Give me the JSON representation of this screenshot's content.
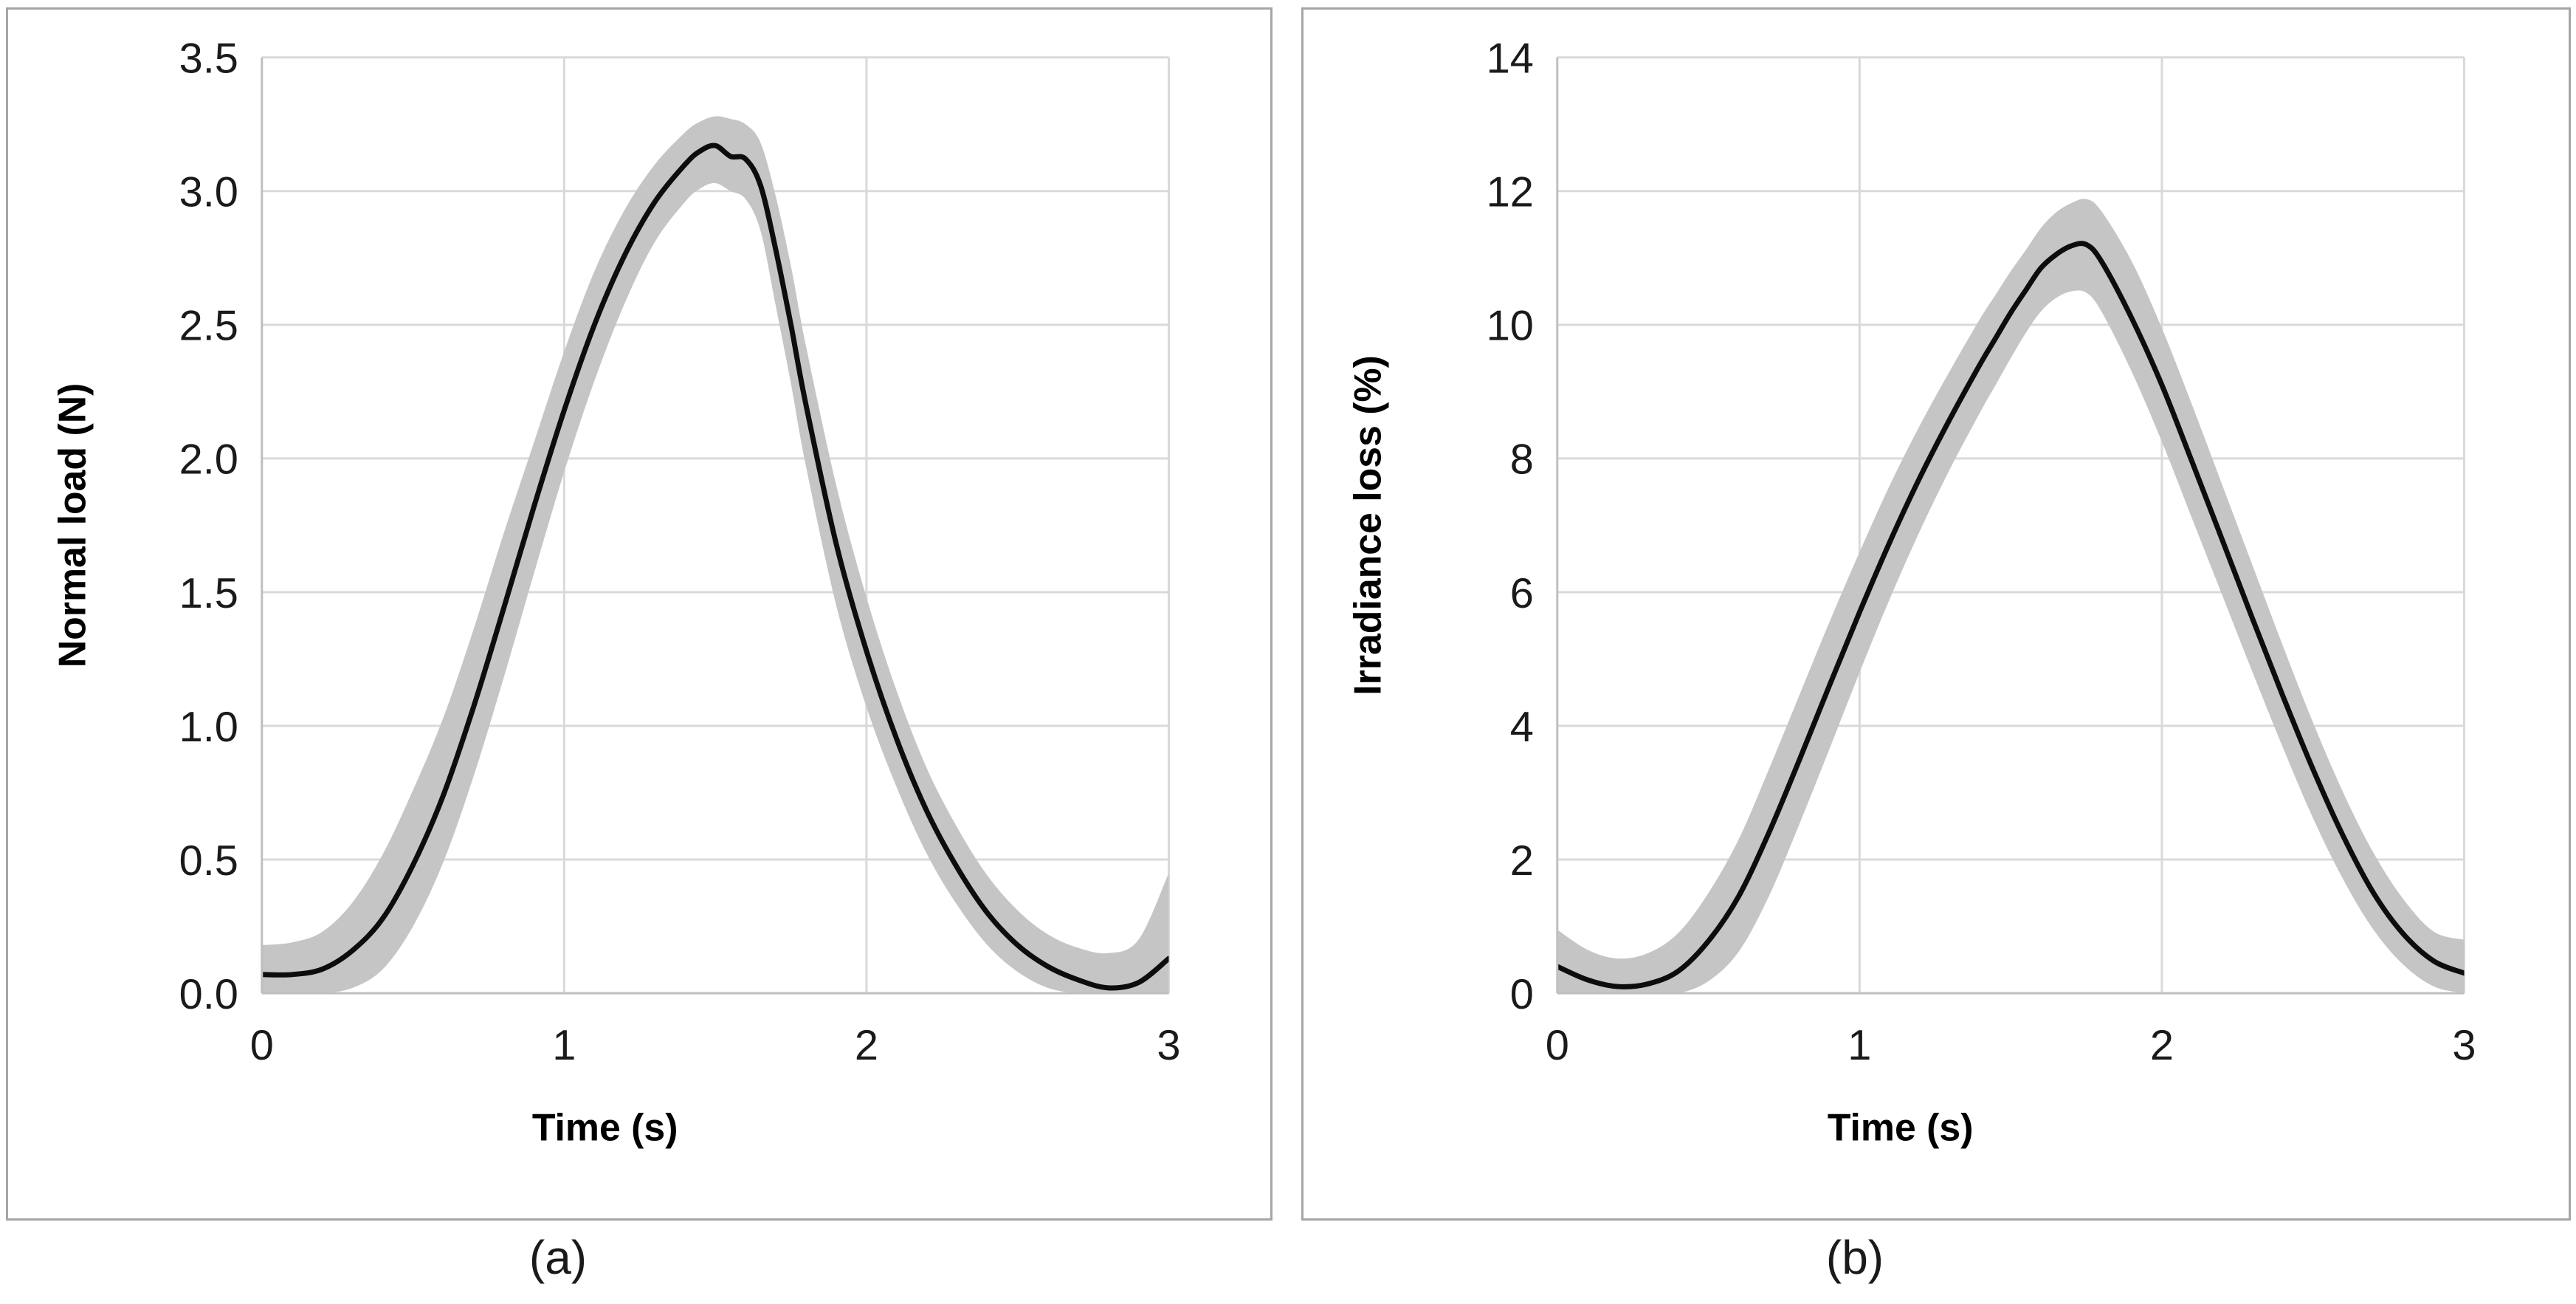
{
  "figure": {
    "background_color": "#ffffff",
    "panel_border_color": "#a6a6a6",
    "gridline_color": "#d9d9d9",
    "axis_line_color": "#bfbfbf",
    "tick_label_color": "#1a1a1a",
    "captions": {
      "a": "(a)",
      "b": "(b)"
    }
  },
  "chart_data": [
    {
      "type": "line",
      "caption": "(a)",
      "xlabel": "Time (s)",
      "ylabel": "Normal load (N)",
      "xlim": [
        0,
        3
      ],
      "ylim": [
        0,
        3.5
      ],
      "x_ticks": [
        0,
        1,
        2,
        3
      ],
      "x_tick_labels": [
        "0",
        "1",
        "2",
        "3"
      ],
      "y_ticks": [
        0,
        0.5,
        1,
        1.5,
        2,
        2.5,
        3,
        3.5
      ],
      "y_tick_labels": [
        "0.0",
        "0.5",
        "1.0",
        "1.5",
        "2.0",
        "2.5",
        "3.0",
        "3.5"
      ],
      "grid": true,
      "legend": "none",
      "line_color": "#0d0d0d",
      "band_color": "#c5c5c5",
      "x": [
        0,
        0.1,
        0.2,
        0.3,
        0.4,
        0.5,
        0.6,
        0.7,
        0.8,
        0.9,
        1,
        1.1,
        1.2,
        1.3,
        1.4,
        1.45,
        1.5,
        1.55,
        1.6,
        1.65,
        1.7,
        1.75,
        1.8,
        1.9,
        2,
        2.1,
        2.2,
        2.3,
        2.4,
        2.5,
        2.6,
        2.7,
        2.8,
        2.9,
        3
      ],
      "series": [
        {
          "name": "mean",
          "values": [
            0.07,
            0.07,
            0.09,
            0.16,
            0.28,
            0.48,
            0.74,
            1.07,
            1.44,
            1.82,
            2.18,
            2.5,
            2.76,
            2.96,
            3.1,
            3.15,
            3.17,
            3.13,
            3.12,
            3.02,
            2.78,
            2.5,
            2.2,
            1.68,
            1.28,
            0.95,
            0.68,
            0.47,
            0.3,
            0.18,
            0.1,
            0.05,
            0.02,
            0.04,
            0.13
          ]
        },
        {
          "name": "band_upper",
          "values": [
            0.18,
            0.19,
            0.23,
            0.34,
            0.52,
            0.76,
            1.03,
            1.36,
            1.72,
            2.06,
            2.4,
            2.7,
            2.93,
            3.1,
            3.22,
            3.26,
            3.28,
            3.27,
            3.25,
            3.18,
            2.98,
            2.72,
            2.42,
            1.9,
            1.48,
            1.13,
            0.84,
            0.62,
            0.44,
            0.31,
            0.22,
            0.17,
            0.15,
            0.2,
            0.45
          ]
        },
        {
          "name": "band_lower",
          "values": [
            0.0,
            0.0,
            0.0,
            0.02,
            0.09,
            0.25,
            0.49,
            0.81,
            1.18,
            1.57,
            1.95,
            2.29,
            2.58,
            2.81,
            2.96,
            3.01,
            3.03,
            3.0,
            2.97,
            2.85,
            2.57,
            2.28,
            1.97,
            1.45,
            1.07,
            0.77,
            0.52,
            0.33,
            0.18,
            0.08,
            0.02,
            0.0,
            0.0,
            0.0,
            0.0
          ]
        }
      ]
    },
    {
      "type": "line",
      "caption": "(b)",
      "xlabel": "Time (s)",
      "ylabel": "Irradiance loss (%)",
      "xlim": [
        0,
        3
      ],
      "ylim": [
        0,
        14
      ],
      "x_ticks": [
        0,
        1,
        2,
        3
      ],
      "x_tick_labels": [
        "0",
        "1",
        "2",
        "3"
      ],
      "y_ticks": [
        0,
        2,
        4,
        6,
        8,
        10,
        12,
        14
      ],
      "y_tick_labels": [
        "0",
        "2",
        "4",
        "6",
        "8",
        "10",
        "12",
        "14"
      ],
      "grid": true,
      "legend": "none",
      "line_color": "#0d0d0d",
      "band_color": "#c5c5c5",
      "x": [
        0,
        0.1,
        0.2,
        0.3,
        0.4,
        0.5,
        0.6,
        0.7,
        0.8,
        0.9,
        1,
        1.1,
        1.2,
        1.3,
        1.4,
        1.45,
        1.5,
        1.55,
        1.6,
        1.65,
        1.7,
        1.75,
        1.8,
        1.9,
        2,
        2.1,
        2.2,
        2.3,
        2.4,
        2.5,
        2.6,
        2.7,
        2.8,
        2.9,
        3
      ],
      "series": [
        {
          "name": "mean",
          "values": [
            0.4,
            0.2,
            0.1,
            0.14,
            0.33,
            0.78,
            1.45,
            2.4,
            3.48,
            4.6,
            5.7,
            6.75,
            7.72,
            8.6,
            9.42,
            9.8,
            10.18,
            10.52,
            10.85,
            11.05,
            11.18,
            11.2,
            10.95,
            10.1,
            9.1,
            7.95,
            6.78,
            5.6,
            4.45,
            3.35,
            2.35,
            1.5,
            0.88,
            0.48,
            0.3
          ]
        },
        {
          "name": "band_upper",
          "values": [
            0.95,
            0.65,
            0.52,
            0.6,
            0.9,
            1.5,
            2.3,
            3.35,
            4.45,
            5.55,
            6.6,
            7.6,
            8.5,
            9.32,
            10.1,
            10.45,
            10.8,
            11.12,
            11.45,
            11.68,
            11.82,
            11.88,
            11.7,
            10.95,
            9.95,
            8.8,
            7.6,
            6.4,
            5.2,
            4.05,
            3.0,
            2.1,
            1.4,
            0.92,
            0.8
          ]
        },
        {
          "name": "band_lower",
          "values": [
            0.0,
            0.0,
            0.0,
            0.0,
            0.0,
            0.18,
            0.62,
            1.45,
            2.52,
            3.65,
            4.8,
            5.9,
            6.92,
            7.85,
            8.7,
            9.1,
            9.5,
            9.88,
            10.2,
            10.4,
            10.5,
            10.48,
            10.2,
            9.3,
            8.25,
            7.1,
            5.95,
            4.8,
            3.68,
            2.62,
            1.7,
            0.95,
            0.42,
            0.1,
            0.0
          ]
        }
      ]
    }
  ]
}
